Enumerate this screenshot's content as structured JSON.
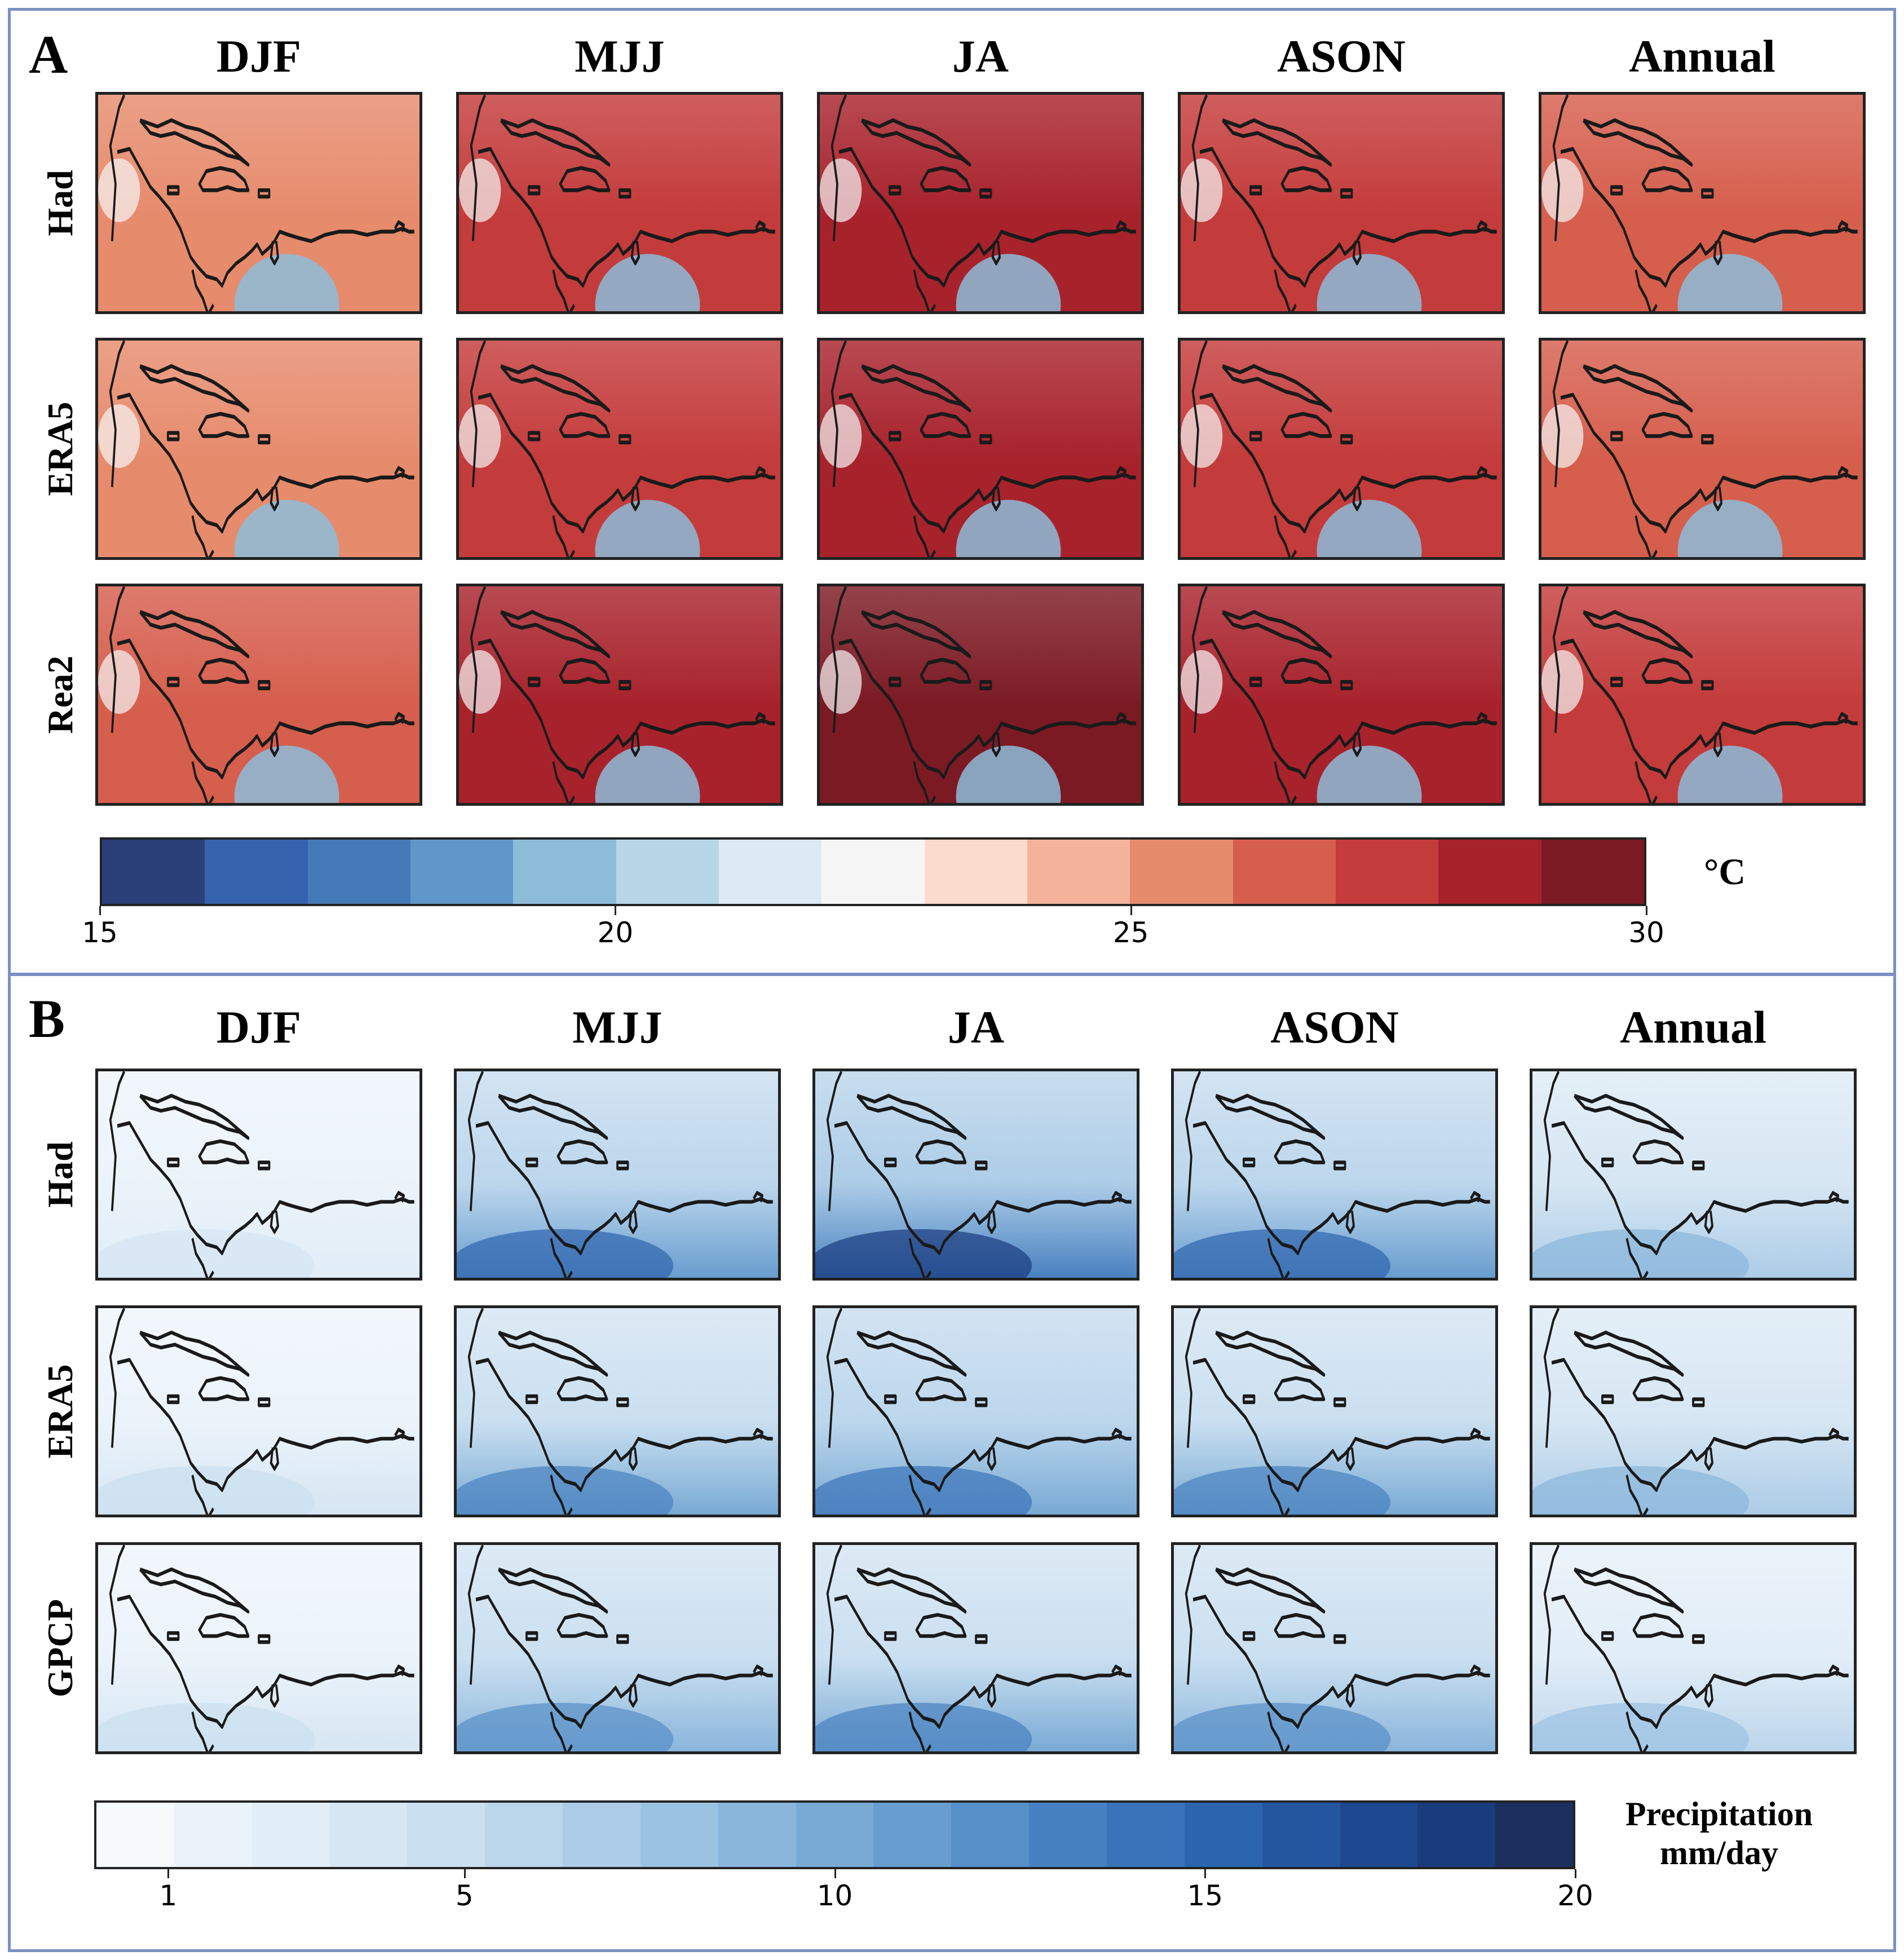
{
  "panelA": {
    "label": "A",
    "columns": [
      "DJF",
      "MJJ",
      "JA",
      "ASON",
      "Annual"
    ],
    "rows": [
      "Had",
      "ERA5",
      "Rea2"
    ],
    "colorbar": {
      "unit": "°C",
      "ticks": [
        "15",
        "20",
        "25",
        "30"
      ],
      "colors": [
        "#2b3f78",
        "#3462ac",
        "#4579b8",
        "#5e97c8",
        "#8dbcd9",
        "#b7d7e8",
        "#dcebf3",
        "#f6f6f6",
        "#fbdbcd",
        "#f3b39a",
        "#e78b6d",
        "#d65e4d",
        "#c43b3b",
        "#a8222c",
        "#7c1a24"
      ]
    }
  },
  "panelB": {
    "label": "B",
    "columns": [
      "DJF",
      "MJJ",
      "JA",
      "ASON",
      "Annual"
    ],
    "rows": [
      "Had",
      "ERA5",
      "GPCP"
    ],
    "colorbar": {
      "unit_line1": "Precipitation",
      "unit_line2": "mm/day",
      "ticks": [
        "1",
        "5",
        "10",
        "15",
        "20"
      ],
      "colors": [
        "#f6fafd",
        "#ebf3fa",
        "#e1edf7",
        "#d6e6f3",
        "#cadff0",
        "#bcd6ec",
        "#acccE7",
        "#9cc2e2",
        "#8ab6dc",
        "#78aad5",
        "#679dcf",
        "#578fc8",
        "#4881c1",
        "#3a73b9",
        "#2d64ae",
        "#2456a0",
        "#1d4890",
        "#1a3b7d",
        "#1c305f"
      ]
    }
  },
  "chart_data": [
    {
      "type": "heatmap",
      "title": "A",
      "description_variable": "temperature",
      "columns": [
        "DJF",
        "MJJ",
        "JA",
        "ASON",
        "Annual"
      ],
      "rows": [
        "Had",
        "ERA5",
        "Rea2"
      ],
      "colorbar_range": [
        15,
        30
      ],
      "colorbar_ticks": [
        15,
        20,
        25,
        30
      ],
      "unit": "°C",
      "approx_mean_values": [
        [
          25.5,
          27.5,
          28.0,
          27.5,
          26.5
        ],
        [
          25.5,
          27.8,
          28.0,
          27.8,
          26.8
        ],
        [
          26.5,
          28.5,
          29.0,
          28.5,
          27.5
        ]
      ]
    },
    {
      "type": "heatmap",
      "title": "B",
      "description_variable": "precipitation",
      "columns": [
        "DJF",
        "MJJ",
        "JA",
        "ASON",
        "Annual"
      ],
      "rows": [
        "Had",
        "ERA5",
        "GPCP"
      ],
      "colorbar_range": [
        0,
        20
      ],
      "colorbar_ticks": [
        1,
        5,
        10,
        15,
        20
      ],
      "unit": "Precipitation mm/day",
      "approx_mean_values": [
        [
          1.5,
          6.0,
          7.0,
          6.0,
          3.5
        ],
        [
          2.0,
          5.0,
          5.5,
          5.0,
          3.5
        ],
        [
          2.0,
          4.5,
          5.0,
          4.5,
          3.0
        ]
      ]
    }
  ]
}
